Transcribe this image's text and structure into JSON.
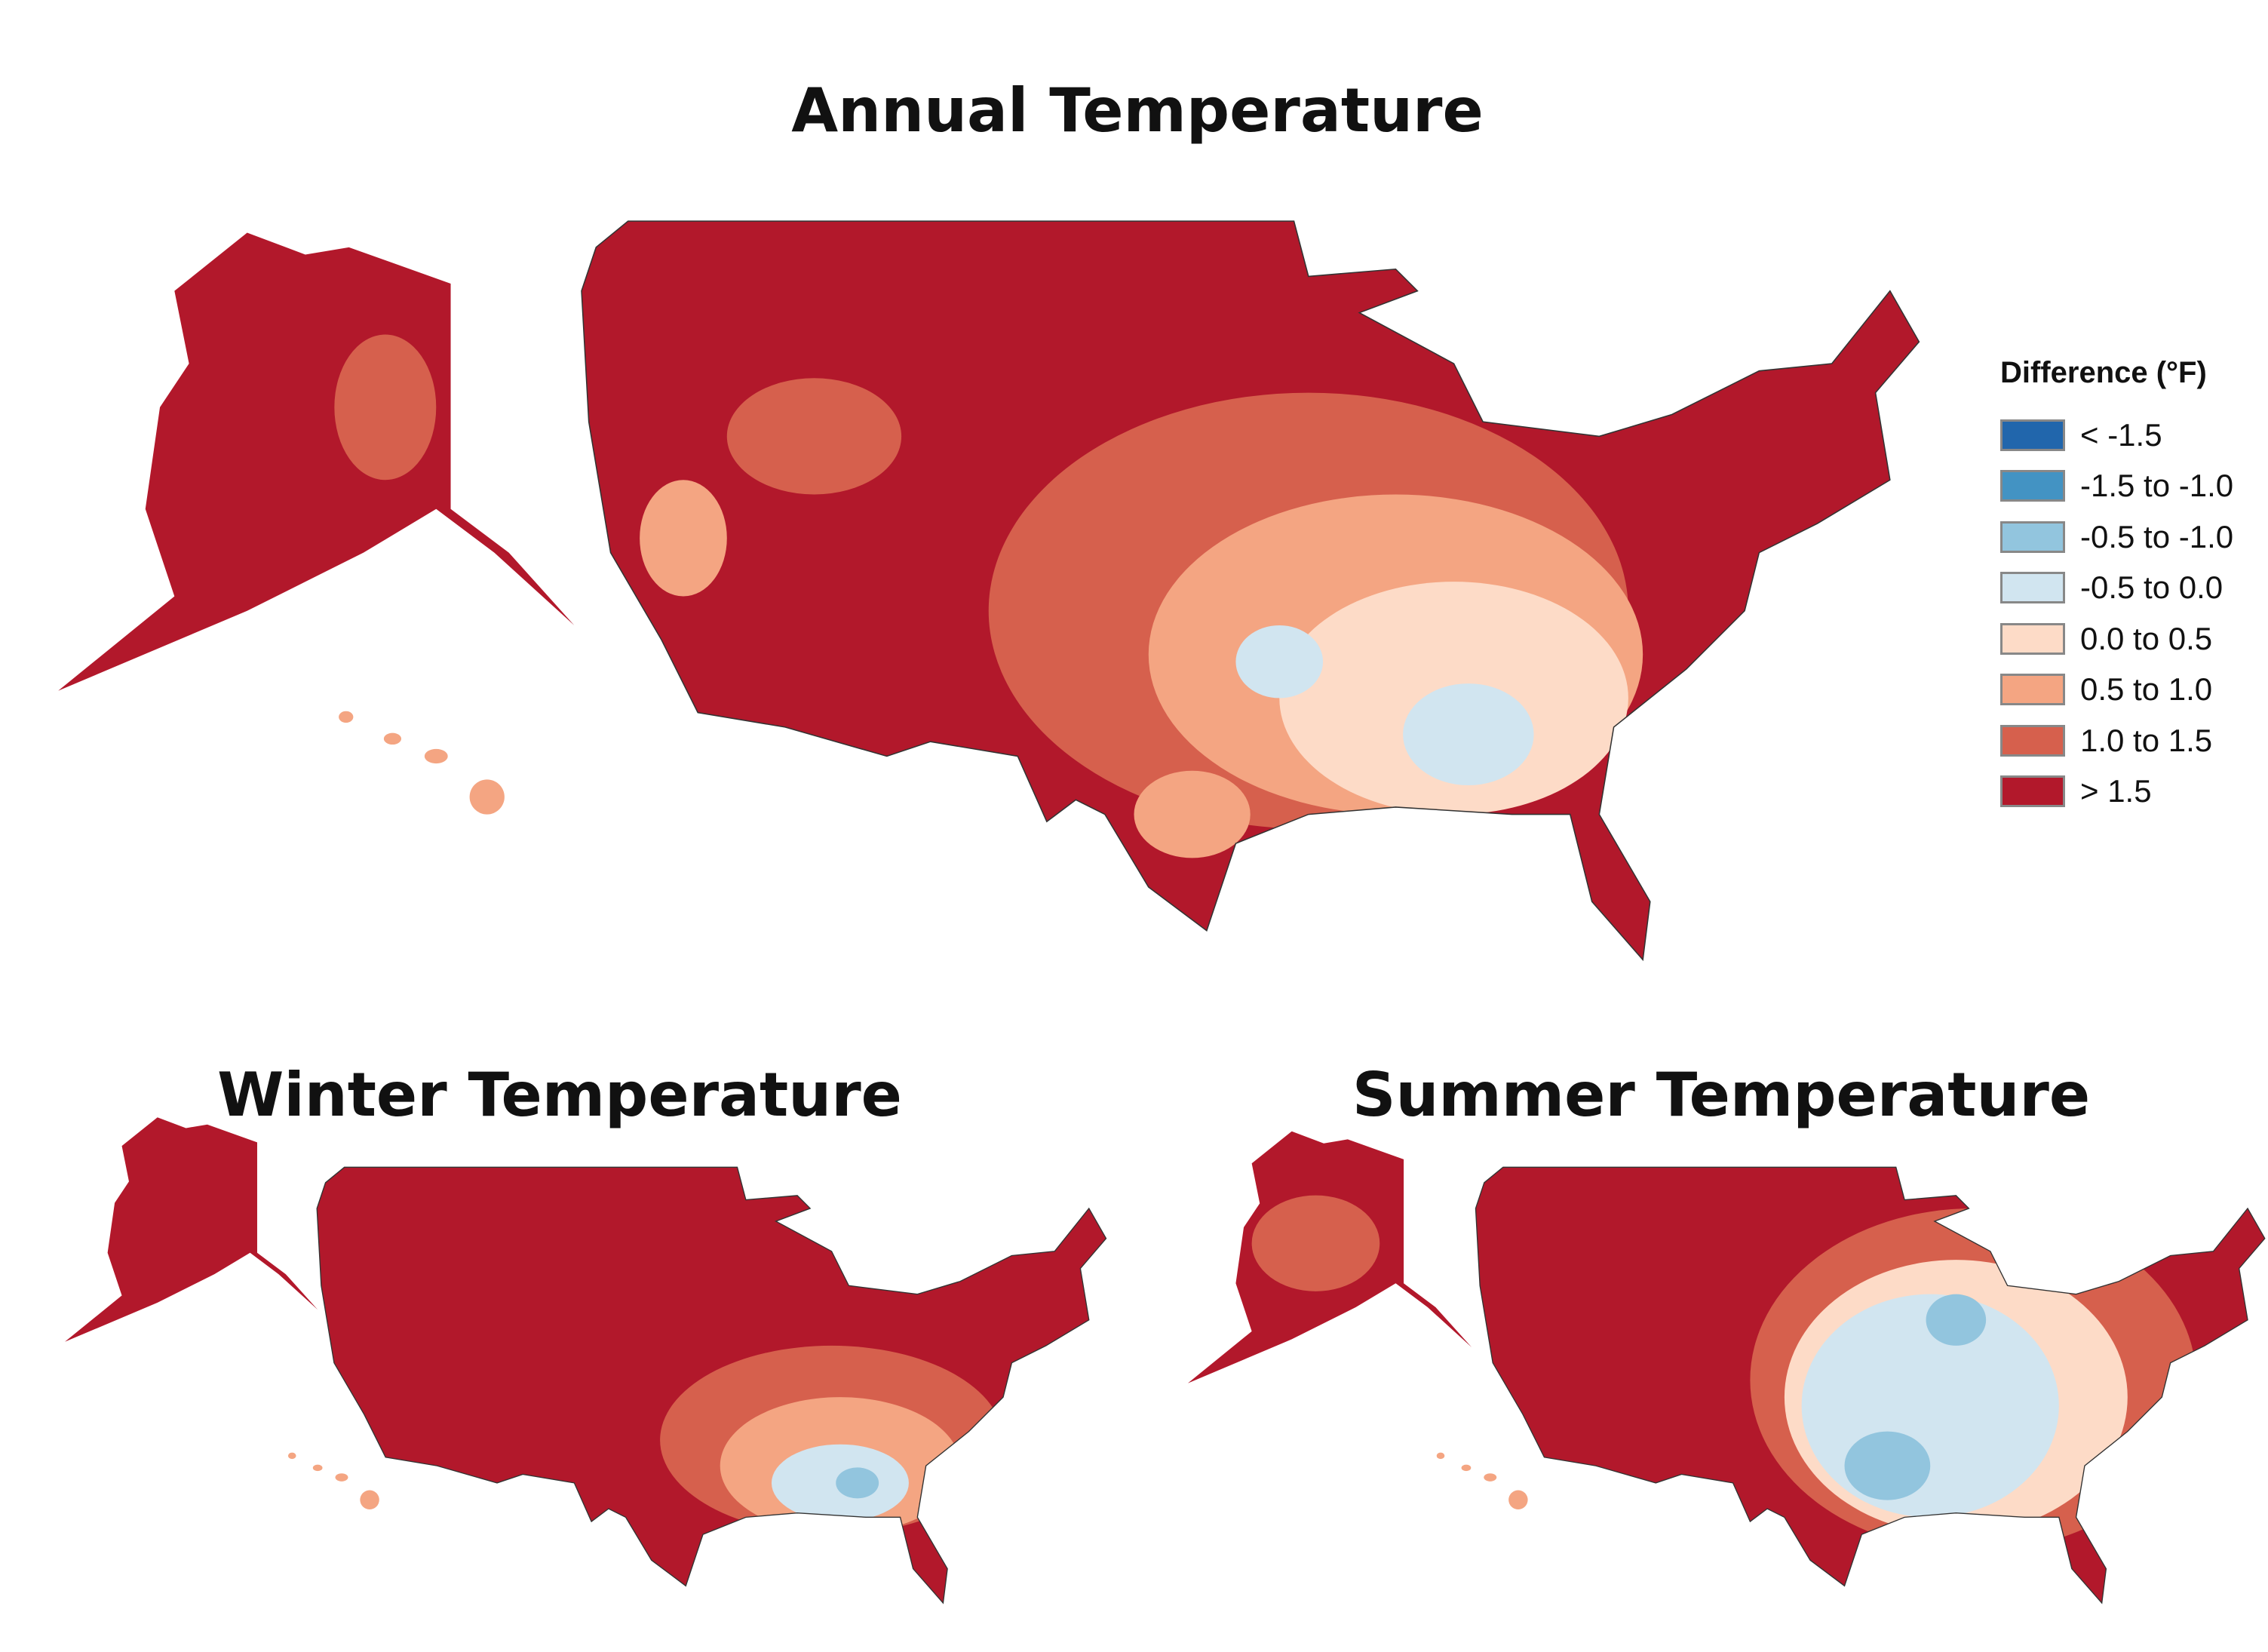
{
  "chart_data": {
    "type": "heatmap",
    "title": "Annual Temperature",
    "panels": [
      {
        "title": "Annual Temperature",
        "regions": [
          "Contiguous US",
          "Alaska",
          "Hawaii"
        ]
      },
      {
        "title": "Winter Temperature",
        "regions": [
          "Contiguous US",
          "Alaska",
          "Hawaii"
        ]
      },
      {
        "title": "Summer Temperature",
        "regions": [
          "Contiguous US",
          "Alaska",
          "Hawaii"
        ]
      }
    ],
    "legend": {
      "title": "Difference (°F)",
      "placement": "right",
      "bins": [
        {
          "label": "< -1.5",
          "color": "#2166ac"
        },
        {
          "label": "-1.5 to -1.0",
          "color": "#4393c3"
        },
        {
          "label": "-0.5 to -1.0",
          "color": "#92c5de"
        },
        {
          "label": "-0.5 to 0.0",
          "color": "#d1e5f0"
        },
        {
          "label": "0.0 to 0.5",
          "color": "#fddbc7"
        },
        {
          "label": "0.5 to 1.0",
          "color": "#f4a582"
        },
        {
          "label": "1.0 to 1.5",
          "color": "#d6604d"
        },
        {
          "label": "> 1.5",
          "color": "#b2182b"
        }
      ]
    }
  },
  "titles": {
    "annual": "Annual Temperature",
    "winter": "Winter Temperature",
    "summer": "Summer Temperature"
  }
}
